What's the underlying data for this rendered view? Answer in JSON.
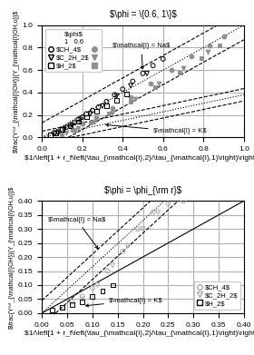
{
  "chart_data": [
    {
      "type": "scatter",
      "title": "$\\phi = \\{0.6, 1\\}$",
      "xlabel": "$1/\\left[1 + r_f\\left(\\tau_{\\mathcal{I},2}/\\tau_{\\mathcal{I},1}\\right)\\right]$",
      "ylabel": "$\\frac{Y^*_{\\mathcal{I}OH}}{Y_{\\mathcal{I}OH,u}}$",
      "xlim": [
        0.0,
        1.0
      ],
      "ylim": [
        0.0,
        1.0
      ],
      "xticks": [
        0.0,
        0.2,
        0.4,
        0.6,
        0.8,
        1.0
      ],
      "yticks": [
        0.0,
        0.2,
        0.4,
        0.6,
        0.8,
        1.0
      ],
      "grid": true,
      "legend": "upper left",
      "legend_title": "$\\phi$\n1   0.6",
      "series": [
        {
          "name": "$CH_4$",
          "color": "#000000",
          "marker": "open_circle",
          "x": [
            0.06,
            0.08,
            0.1,
            0.12,
            0.14,
            0.16,
            0.18,
            0.2,
            0.22,
            0.25,
            0.28,
            0.32,
            0.36,
            0.4,
            0.45,
            0.5,
            0.55,
            0.6
          ],
          "values": [
            0.04,
            0.05,
            0.07,
            0.09,
            0.11,
            0.13,
            0.16,
            0.18,
            0.21,
            0.24,
            0.27,
            0.32,
            0.38,
            0.43,
            0.5,
            0.57,
            0.64,
            0.7
          ]
        },
        {
          "color": "#909090",
          "marker": "circle",
          "x": [
            0.1,
            0.15,
            0.2,
            0.27,
            0.35,
            0.44,
            0.54,
            0.64,
            0.74,
            0.83,
            0.9
          ],
          "values": [
            0.04,
            0.07,
            0.12,
            0.18,
            0.26,
            0.36,
            0.48,
            0.6,
            0.72,
            0.82,
            0.9
          ]
        },
        {
          "name": "$C_2H_2$",
          "color": "#000000",
          "marker": "open_triangle_down",
          "x": [
            0.08,
            0.11,
            0.15,
            0.19,
            0.24,
            0.3,
            0.37,
            0.44,
            0.52
          ],
          "values": [
            0.04,
            0.07,
            0.11,
            0.16,
            0.21,
            0.28,
            0.37,
            0.46,
            0.57
          ]
        },
        {
          "color": "#909090",
          "marker": "triangle_down",
          "x": [
            0.12,
            0.18,
            0.26,
            0.35,
            0.46,
            0.58,
            0.7,
            0.82
          ],
          "values": [
            0.04,
            0.08,
            0.14,
            0.22,
            0.34,
            0.48,
            0.62,
            0.76
          ]
        },
        {
          "name": "$H_2$",
          "color": "#000000",
          "marker": "open_square",
          "x": [
            0.04,
            0.07,
            0.1,
            0.14,
            0.18,
            0.22,
            0.27,
            0.32,
            0.37,
            0.42
          ],
          "values": [
            0.02,
            0.04,
            0.07,
            0.1,
            0.14,
            0.18,
            0.23,
            0.28,
            0.33,
            0.39
          ]
        },
        {
          "color": "#909090",
          "marker": "square",
          "x": [
            0.1,
            0.16,
            0.24,
            0.33,
            0.44,
            0.56,
            0.68,
            0.79,
            0.88
          ],
          "values": [
            0.03,
            0.07,
            0.13,
            0.21,
            0.32,
            0.45,
            0.58,
            0.71,
            0.82
          ]
        }
      ],
      "reference_lines": [
        {
          "slope": 1.0,
          "intercept": 0.13,
          "line_style": "dashed",
          "color": "#000000"
        },
        {
          "slope": 1.0,
          "intercept": -0.13,
          "line_style": "dashed",
          "color": "#000000"
        },
        {
          "slope": 1.0,
          "intercept": 0.0,
          "line_style": "dotted",
          "color": "#000000"
        },
        {
          "slope": 0.38,
          "intercept": 0.055,
          "line_style": "dashed",
          "color": "#000000"
        },
        {
          "slope": 0.38,
          "intercept": -0.055,
          "line_style": "dashed",
          "color": "#000000"
        },
        {
          "slope": 0.38,
          "intercept": 0.0,
          "line_style": "dotted",
          "color": "#000000"
        }
      ],
      "annotations": [
        {
          "text": "$\\mathcal{I} = Na$",
          "x": 0.5,
          "y": 0.58
        },
        {
          "text": "$\\mathcal{I} = K$",
          "x": 0.3,
          "y": 0.115
        }
      ]
    },
    {
      "type": "scatter",
      "title": "$\\phi = \\phi_{\\rm r}$",
      "xlabel": "$1/\\left[1 + r_f\\left(\\tau_{\\mathcal{I},2}/\\tau_{\\mathcal{I},1}\\right)\\right]$",
      "ylabel": "$\\frac{Y^*_{\\mathcal{I}OH}}{Y_{\\mathcal{I}OH,u}}$",
      "xlim": [
        0.0,
        0.4
      ],
      "ylim": [
        0.0,
        0.4
      ],
      "xticks": [
        {
          "value": 0.0,
          "label": "0.00"
        },
        {
          "value": 0.05,
          "label": "0.05"
        },
        {
          "value": 0.1,
          "label": "0.10"
        },
        {
          "value": 0.15,
          "label": "0.15"
        },
        {
          "value": 0.2,
          "label": "0.20"
        },
        {
          "value": 0.25,
          "label": "0.25"
        },
        {
          "value": 0.3,
          "label": "0.30"
        },
        {
          "value": 0.35,
          "label": "0.35"
        },
        {
          "value": 0.4,
          "label": "0.40"
        }
      ],
      "yticks": [
        {
          "value": 0.0,
          "label": "0.00"
        },
        {
          "value": 0.05,
          "label": "0.05"
        },
        {
          "value": 0.1,
          "label": "0.10"
        },
        {
          "value": 0.15,
          "label": "0.15"
        },
        {
          "value": 0.2,
          "label": "0.20"
        },
        {
          "value": 0.25,
          "label": "0.25"
        },
        {
          "value": 0.3,
          "label": "0.30"
        },
        {
          "value": 0.35,
          "label": "0.35"
        },
        {
          "value": 0.4,
          "label": "0.40"
        }
      ],
      "grid": true,
      "legend": "lower right",
      "series": [
        {
          "name": "$CH_4$",
          "color": "#aaaaaa",
          "marker": "open_circle",
          "x": [
            0.04,
            0.06,
            0.08,
            0.1,
            0.13,
            0.16,
            0.19,
            0.22,
            0.25,
            0.28
          ],
          "values": [
            0.02,
            0.04,
            0.06,
            0.09,
            0.15,
            0.22,
            0.3,
            0.36,
            0.39,
            0.4
          ]
        },
        {
          "name": "$C_2H_2$",
          "color": "#aaaaaa",
          "marker": "open_triangle_down",
          "x": [
            0.08,
            0.11,
            0.14,
            0.17,
            0.2,
            0.23
          ],
          "values": [
            0.05,
            0.1,
            0.17,
            0.24,
            0.3,
            0.36
          ]
        },
        {
          "name": "$H_2$",
          "color": "#000000",
          "marker": "open_square",
          "x": [
            0.02,
            0.04,
            0.06,
            0.08,
            0.1,
            0.12,
            0.14
          ],
          "values": [
            0.01,
            0.02,
            0.03,
            0.04,
            0.06,
            0.08,
            0.1
          ]
        }
      ],
      "reference_lines": [
        {
          "slope": 1.65,
          "intercept": 0.045,
          "line_style": "dashed",
          "color": "#000000"
        },
        {
          "slope": 1.65,
          "intercept": -0.045,
          "line_style": "dashed",
          "color": "#000000"
        },
        {
          "slope": 1.65,
          "intercept": 0.0,
          "line_style": "dotted",
          "color": "#000000"
        },
        {
          "slope": 1.0,
          "intercept": 0.0,
          "line_style": "solid",
          "color": "#000000"
        }
      ],
      "annotations": [
        {
          "text": "$\\mathcal{I} = Na$",
          "x": 0.115,
          "y": 0.22
        },
        {
          "text": "$\\mathcal{I} = K$",
          "x": 0.08,
          "y": 0.025
        }
      ]
    }
  ]
}
